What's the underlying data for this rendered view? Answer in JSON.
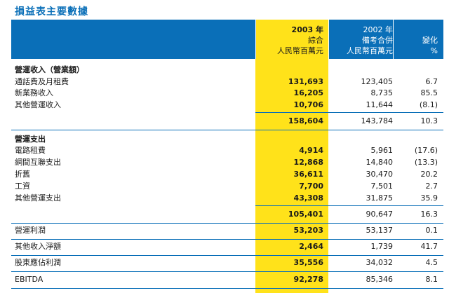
{
  "title": "損益表主要數據",
  "header": {
    "col1": [
      "2003 年",
      "綜合",
      "人民幣百萬元"
    ],
    "col2": [
      "2002 年",
      "備考合併",
      "人民幣百萬元"
    ],
    "col3": [
      "變化",
      "%"
    ]
  },
  "revenue": {
    "heading": "營運收入（營業額）",
    "rows": [
      {
        "label": "通話費及月租費",
        "v2003": "131,693",
        "v2002": "123,405",
        "change": "6.7"
      },
      {
        "label": "新業務收入",
        "v2003": "16,205",
        "v2002": "8,735",
        "change": "85.5"
      },
      {
        "label": "其他營運收入",
        "v2003": "10,706",
        "v2002": "11,644",
        "change": "(8.1)"
      }
    ],
    "total": {
      "v2003": "158,604",
      "v2002": "143,784",
      "change": "10.3"
    }
  },
  "expenses": {
    "heading": "營運支出",
    "rows": [
      {
        "label": "電路租費",
        "v2003": "4,914",
        "v2002": "5,961",
        "change": "(17.6)"
      },
      {
        "label": "網間互聯支出",
        "v2003": "12,868",
        "v2002": "14,840",
        "change": "(13.3)"
      },
      {
        "label": "折舊",
        "v2003": "36,611",
        "v2002": "30,470",
        "change": "20.2"
      },
      {
        "label": "工資",
        "v2003": "7,700",
        "v2002": "7,501",
        "change": "2.7"
      },
      {
        "label": "其他營運支出",
        "v2003": "43,308",
        "v2002": "31,875",
        "change": "35.9"
      }
    ],
    "total": {
      "v2003": "105,401",
      "v2002": "90,647",
      "change": "16.3"
    }
  },
  "summary": [
    {
      "label": "營運利潤",
      "v2003": "53,203",
      "v2002": "53,137",
      "change": "0.1"
    },
    {
      "label": "其他收入淨額",
      "v2003": "2,464",
      "v2002": "1,739",
      "change": "41.7"
    },
    {
      "label": "股東應佔利潤",
      "v2003": "35,556",
      "v2002": "34,032",
      "change": "4.5"
    },
    {
      "label": "EBITDA",
      "v2003": "92,278",
      "v2002": "85,346",
      "change": "8.1"
    }
  ]
}
